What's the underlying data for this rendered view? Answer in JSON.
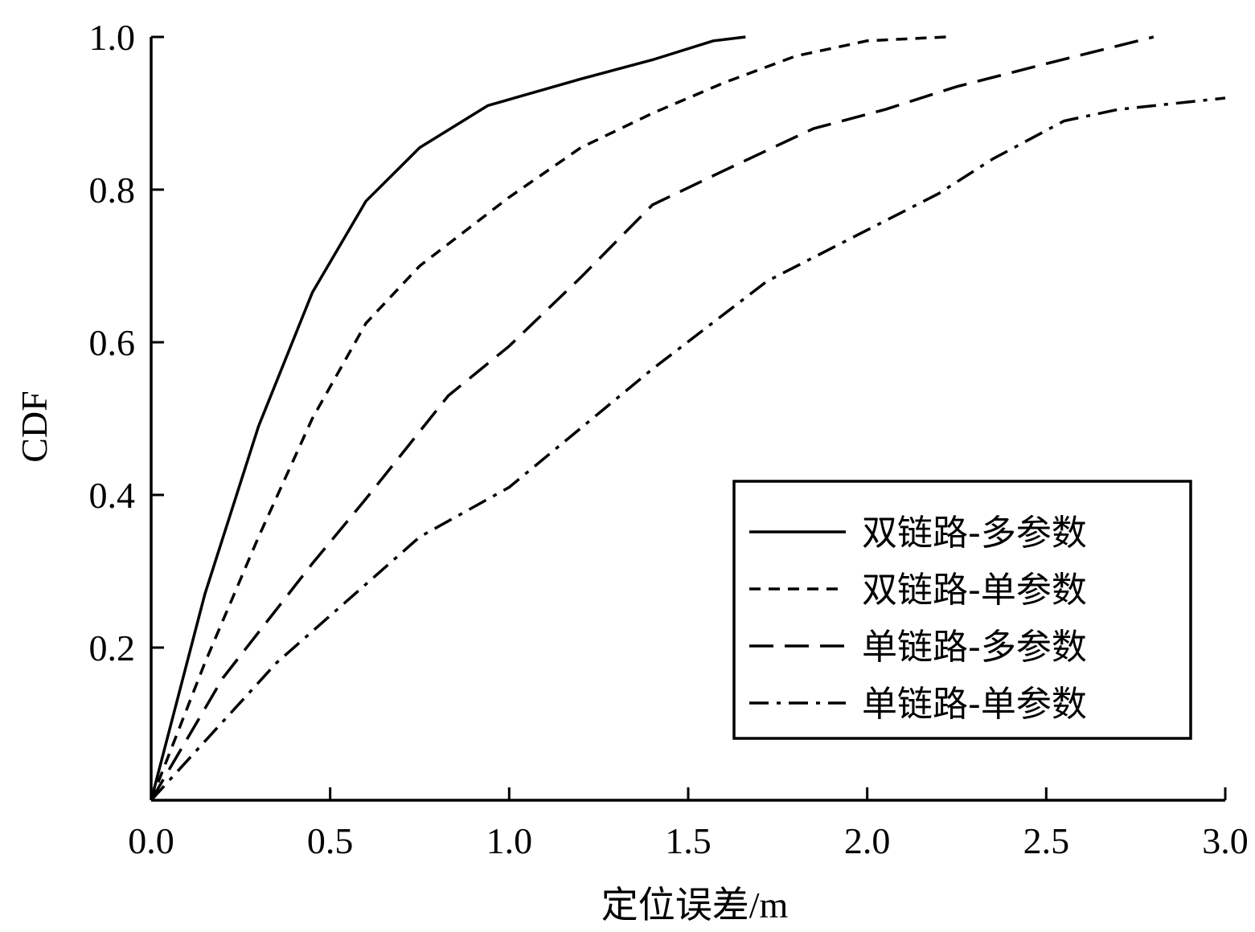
{
  "chart_data": {
    "type": "line",
    "xlabel": "定位误差/m",
    "ylabel": "CDF",
    "xlim": [
      0,
      3.0
    ],
    "ylim": [
      0,
      1.0
    ],
    "xticks": [
      0.0,
      0.5,
      1.0,
      1.5,
      2.0,
      2.5,
      3.0
    ],
    "xtick_labels": [
      "0.0",
      "0.5",
      "1.0",
      "1.5",
      "2.0",
      "2.5",
      "3.0"
    ],
    "yticks": [
      0.2,
      0.4,
      0.6,
      0.8,
      1.0
    ],
    "ytick_labels": [
      "0.2",
      "0.4",
      "0.6",
      "0.8",
      "1.0"
    ],
    "grid": false,
    "legend_position": "lower-right",
    "series": [
      {
        "name": "双链路-多参数",
        "style": "solid",
        "x": [
          0,
          0.15,
          0.3,
          0.45,
          0.6,
          0.75,
          0.94,
          1.2,
          1.4,
          1.57,
          1.66
        ],
        "y": [
          0,
          0.27,
          0.49,
          0.665,
          0.785,
          0.855,
          0.91,
          0.945,
          0.97,
          0.995,
          1.0
        ]
      },
      {
        "name": "双链路-单参数",
        "style": "short-dash",
        "x": [
          0,
          0.15,
          0.3,
          0.45,
          0.6,
          0.75,
          1.0,
          1.2,
          1.4,
          1.6,
          1.8,
          2.0,
          2.22
        ],
        "y": [
          0,
          0.18,
          0.345,
          0.5,
          0.625,
          0.7,
          0.79,
          0.855,
          0.9,
          0.94,
          0.975,
          0.995,
          1.0
        ]
      },
      {
        "name": "单链路-多参数",
        "style": "long-dash",
        "x": [
          0,
          0.2,
          0.45,
          0.6,
          0.83,
          1.0,
          1.2,
          1.4,
          1.6,
          1.85,
          2.05,
          2.25,
          2.5,
          2.8
        ],
        "y": [
          0,
          0.16,
          0.31,
          0.395,
          0.53,
          0.595,
          0.685,
          0.78,
          0.825,
          0.88,
          0.905,
          0.935,
          0.965,
          1.0
        ]
      },
      {
        "name": "单链路-单参数",
        "style": "dash-dot",
        "x": [
          0,
          0.35,
          0.75,
          1.0,
          1.4,
          1.72,
          2.2,
          2.35,
          2.55,
          2.7,
          3.0
        ],
        "y": [
          0,
          0.18,
          0.345,
          0.41,
          0.565,
          0.68,
          0.795,
          0.84,
          0.89,
          0.905,
          0.92
        ]
      }
    ]
  }
}
